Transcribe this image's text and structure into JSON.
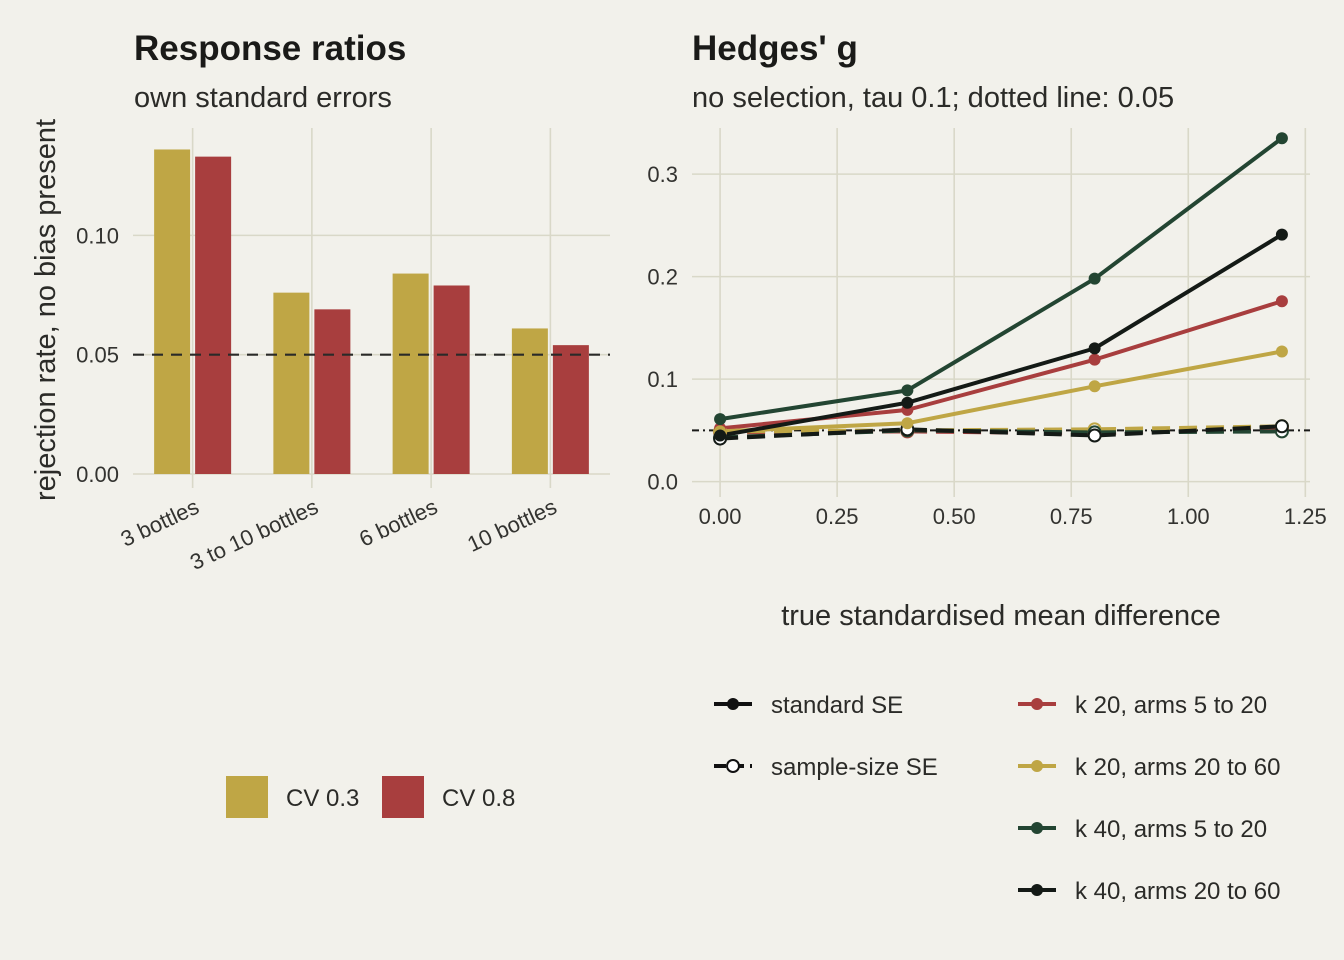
{
  "colors": {
    "background": "#f2f1eb",
    "gold": "#bfa645",
    "red": "#a83e3e",
    "green": "#234532",
    "black": "#141a16",
    "grid": "#d9d8c8"
  },
  "chart_data": [
    {
      "type": "bar",
      "title": "Response ratios",
      "subtitle": "own standard errors",
      "ylabel": "rejection rate, no bias present",
      "xlabel": "",
      "ylim": [
        0,
        0.145
      ],
      "yticks": [
        0.0,
        0.05,
        0.1
      ],
      "ytick_labels": [
        "0.00",
        "0.05",
        "0.10"
      ],
      "reference_line": 0.05,
      "categories": [
        "3 bottles",
        "3 to 10 bottles",
        "6 bottles",
        "10 bottles"
      ],
      "series": [
        {
          "name": "CV 0.3",
          "color": "#bfa645",
          "values": [
            0.136,
            0.076,
            0.084,
            0.061
          ]
        },
        {
          "name": "CV 0.8",
          "color": "#a83e3e",
          "values": [
            0.133,
            0.069,
            0.079,
            0.054
          ]
        }
      ],
      "legend": {
        "position": "bottom",
        "items": [
          "CV 0.3",
          "CV 0.8"
        ]
      }
    },
    {
      "type": "line",
      "title": "Hedges' g",
      "subtitle": "no selection, tau 0.1; dotted line: 0.05",
      "xlabel": "true standardised mean difference",
      "ylabel": "",
      "xlim": [
        -0.06,
        1.26
      ],
      "ylim": [
        -0.015,
        0.345
      ],
      "xticks": [
        0,
        0.25,
        0.5,
        0.75,
        1.0,
        1.25
      ],
      "xtick_labels": [
        "0.00",
        "0.25",
        "0.50",
        "0.75",
        "1.00",
        "1.25"
      ],
      "yticks": [
        0,
        0.1,
        0.2,
        0.3
      ],
      "ytick_labels": [
        "0.0",
        "0.1",
        "0.2",
        "0.3"
      ],
      "reference_line": 0.05,
      "x": [
        0,
        0.4,
        0.8,
        1.2
      ],
      "series": [
        {
          "name": "k 20, arms 5 to 20",
          "se": "standard SE",
          "color": "#a83e3e",
          "values": [
            0.052,
            0.07,
            0.119,
            0.176
          ]
        },
        {
          "name": "k 20, arms 20 to 60",
          "se": "standard SE",
          "color": "#bfa645",
          "values": [
            0.049,
            0.057,
            0.093,
            0.127
          ]
        },
        {
          "name": "k 40, arms 5 to 20",
          "se": "standard SE",
          "color": "#234532",
          "values": [
            0.061,
            0.089,
            0.198,
            0.335
          ]
        },
        {
          "name": "k 40, arms 20 to 60",
          "se": "standard SE",
          "color": "#141a16",
          "values": [
            0.045,
            0.077,
            0.13,
            0.241
          ]
        },
        {
          "name": "k 20, arms 5 to 20",
          "se": "sample-size SE",
          "color": "#a83e3e",
          "values": [
            0.048,
            0.049,
            0.047,
            0.052
          ]
        },
        {
          "name": "k 20, arms 20 to 60",
          "se": "sample-size SE",
          "color": "#bfa645",
          "values": [
            0.049,
            0.05,
            0.051,
            0.054
          ]
        },
        {
          "name": "k 40, arms 5 to 20",
          "se": "sample-size SE",
          "color": "#234532",
          "values": [
            0.043,
            0.05,
            0.048,
            0.049
          ]
        },
        {
          "name": "k 40, arms 20 to 60",
          "se": "sample-size SE",
          "color": "#141a16",
          "values": [
            0.042,
            0.051,
            0.045,
            0.054
          ]
        }
      ],
      "legend": {
        "position": "bottom",
        "linetype_items": [
          "standard SE",
          "sample-size SE"
        ],
        "color_items": [
          "k 20, arms 5 to 20",
          "k 20, arms 20 to 60",
          "k 40, arms 5 to 20",
          "k 40, arms 20 to 60"
        ]
      }
    }
  ]
}
